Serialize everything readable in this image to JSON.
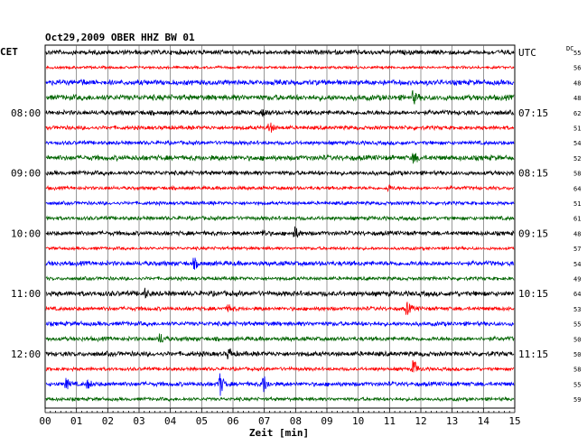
{
  "chart_data": {
    "type": "line",
    "title": "Oct29,2009    OBER HHZ BW 01",
    "left_axis_label": "CET",
    "right_axis_label": "UTC",
    "dc_label": "DC",
    "xlabel": "Zeit [min]",
    "xlim": [
      0,
      15
    ],
    "x_ticks": [
      "00",
      "01",
      "02",
      "03",
      "04",
      "05",
      "06",
      "07",
      "08",
      "09",
      "10",
      "11",
      "12",
      "13",
      "14",
      "15"
    ],
    "left_time_labels": [
      {
        "row": 4,
        "label": "08:00"
      },
      {
        "row": 8,
        "label": "09:00"
      },
      {
        "row": 12,
        "label": "10:00"
      },
      {
        "row": 16,
        "label": "11:00"
      },
      {
        "row": 20,
        "label": "12:00"
      }
    ],
    "right_time_labels": [
      {
        "row": 0,
        "label": "UTC"
      },
      {
        "row": 4,
        "label": "07:15"
      },
      {
        "row": 8,
        "label": "08:15"
      },
      {
        "row": 12,
        "label": "09:15"
      },
      {
        "row": 16,
        "label": "10:15"
      },
      {
        "row": 20,
        "label": "11:15"
      }
    ],
    "row_colors": [
      "#000000",
      "#ff0000",
      "#0000ff",
      "#006400"
    ],
    "traces": [
      {
        "dc": "55",
        "amp": 2.2,
        "events": []
      },
      {
        "dc": "56",
        "amp": 1.2,
        "events": []
      },
      {
        "dc": "48",
        "amp": 2.4,
        "events": [
          {
            "t": 1.2,
            "a": 2
          }
        ]
      },
      {
        "dc": "48",
        "amp": 2.6,
        "events": [
          {
            "t": 11.8,
            "a": 5
          }
        ]
      },
      {
        "dc": "62",
        "amp": 2.2,
        "events": [
          {
            "t": 7.0,
            "a": 3
          }
        ]
      },
      {
        "dc": "51",
        "amp": 1.8,
        "events": [
          {
            "t": 7.2,
            "a": 5
          }
        ]
      },
      {
        "dc": "54",
        "amp": 1.8,
        "events": []
      },
      {
        "dc": "52",
        "amp": 2.4,
        "events": [
          {
            "t": 11.8,
            "a": 5
          }
        ]
      },
      {
        "dc": "58",
        "amp": 2.0,
        "events": []
      },
      {
        "dc": "64",
        "amp": 1.6,
        "events": [
          {
            "t": 11.0,
            "a": 3
          }
        ]
      },
      {
        "dc": "51",
        "amp": 1.6,
        "events": []
      },
      {
        "dc": "61",
        "amp": 1.8,
        "events": []
      },
      {
        "dc": "48",
        "amp": 2.0,
        "events": [
          {
            "t": 8.0,
            "a": 6
          },
          {
            "t": 7.0,
            "a": 3
          }
        ]
      },
      {
        "dc": "57",
        "amp": 1.4,
        "events": []
      },
      {
        "dc": "54",
        "amp": 2.2,
        "events": [
          {
            "t": 4.8,
            "a": 4
          }
        ]
      },
      {
        "dc": "49",
        "amp": 1.6,
        "events": []
      },
      {
        "dc": "64",
        "amp": 2.4,
        "events": [
          {
            "t": 3.2,
            "a": 4
          }
        ]
      },
      {
        "dc": "53",
        "amp": 1.8,
        "events": [
          {
            "t": 11.6,
            "a": 6
          },
          {
            "t": 5.9,
            "a": 3
          }
        ]
      },
      {
        "dc": "55",
        "amp": 2.0,
        "events": []
      },
      {
        "dc": "50",
        "amp": 2.0,
        "events": [
          {
            "t": 3.7,
            "a": 5
          }
        ]
      },
      {
        "dc": "50",
        "amp": 2.2,
        "events": [
          {
            "t": 5.9,
            "a": 5
          }
        ]
      },
      {
        "dc": "58",
        "amp": 1.6,
        "events": [
          {
            "t": 11.8,
            "a": 9
          }
        ]
      },
      {
        "dc": "55",
        "amp": 2.0,
        "events": [
          {
            "t": 5.6,
            "a": 12
          },
          {
            "t": 7.0,
            "a": 9
          },
          {
            "t": 0.7,
            "a": 5
          },
          {
            "t": 1.4,
            "a": 4
          }
        ]
      },
      {
        "dc": "59",
        "amp": 1.6,
        "events": []
      }
    ]
  }
}
